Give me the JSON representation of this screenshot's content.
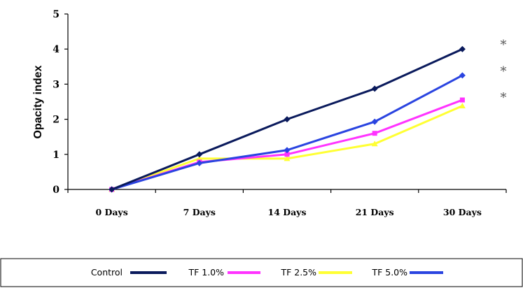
{
  "chart_data": {
    "type": "line",
    "title": "",
    "xlabel": "",
    "ylabel": "Opacity index",
    "categories": [
      "0 Days",
      "7 Days",
      "14 Days",
      "21 Days",
      "30 Days"
    ],
    "y_ticks": [
      "0",
      "1",
      "2",
      "3",
      "4",
      "5"
    ],
    "ylim": [
      0,
      5
    ],
    "grid": false,
    "legend_position": "bottom",
    "series": [
      {
        "name": "Control",
        "color": "#0a1a5c",
        "marker": "diamond",
        "values": [
          0,
          1.0,
          2.0,
          2.87,
          4.0
        ]
      },
      {
        "name": "TF 1.0%",
        "color": "#ff33ff",
        "marker": "square",
        "values": [
          0,
          0.78,
          1.0,
          1.6,
          2.55
        ]
      },
      {
        "name": "TF 2.5%",
        "color": "#ffff33",
        "marker": "triangle",
        "values": [
          0,
          0.88,
          0.88,
          1.3,
          2.38
        ]
      },
      {
        "name": "TF 5.0%",
        "color": "#2a44e0",
        "marker": "diamond",
        "values": [
          0,
          0.75,
          1.12,
          1.93,
          3.25
        ]
      }
    ],
    "annotations": [
      {
        "text": "*",
        "y": 4.2
      },
      {
        "text": "*",
        "y": 3.45
      },
      {
        "text": "*",
        "y": 2.7
      }
    ]
  }
}
